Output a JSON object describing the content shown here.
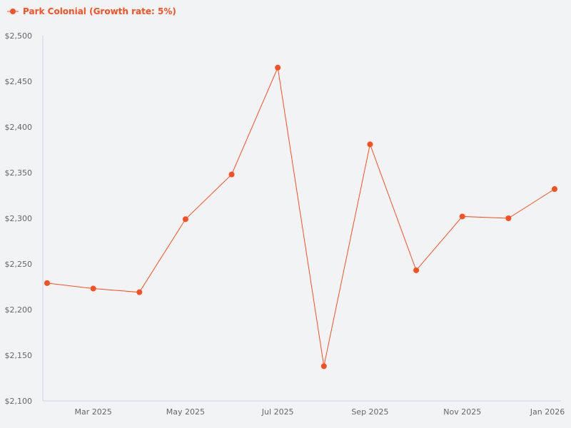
{
  "colors": {
    "series": "#fc4f1f",
    "axis": "#c8d4e6",
    "background": "#f2f3f5",
    "tick_text": "#666666"
  },
  "chart_data": {
    "type": "line",
    "legend_position": "top-left",
    "grid": false,
    "series": [
      {
        "name": "Park Colonial (Growth rate: 5%)",
        "x": [
          "Feb 2025",
          "Mar 2025",
          "Apr 2025",
          "May 2025",
          "Jun 2025",
          "Jul 2025",
          "Aug 2025",
          "Sep 2025",
          "Oct 2025",
          "Nov 2025",
          "Dec 2025",
          "Jan 2026"
        ],
        "values": [
          2229,
          2223,
          2219,
          2299,
          2348,
          2465,
          2138,
          2381,
          2243,
          2302,
          2300,
          2332
        ]
      }
    ],
    "ylim": [
      2100,
      2500
    ],
    "y_ticks": [
      "$2,100",
      "$2,150",
      "$2,200",
      "$2,250",
      "$2,300",
      "$2,350",
      "$2,400",
      "$2,450",
      "$2,500"
    ],
    "y_tick_values": [
      2100,
      2150,
      2200,
      2250,
      2300,
      2350,
      2400,
      2450,
      2500
    ],
    "x_ticks": [
      "Mar 2025",
      "May 2025",
      "Jul 2025",
      "Sep 2025",
      "Nov 2025",
      "Jan 2026"
    ],
    "x_tick_indices": [
      1,
      3,
      5,
      7,
      9,
      11
    ]
  }
}
